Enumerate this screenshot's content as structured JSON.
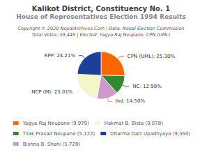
{
  "chart_data": {
    "type": "pie",
    "title": "Kalikot District, Constituency No. 1",
    "subtitle": "House of Representatives Election 1994 Results",
    "annotations": [
      "Copyright © 2020 NepalArchives.Com | Data: Nepal Election Commission",
      "Total Votes: 39,449 | Elected: Yagya Raj Neupane, CPN (UML)"
    ],
    "categories": [
      "CPN (UML)",
      "NC",
      "Ind",
      "NCP (M)",
      "RPP"
    ],
    "values": [
      25.3,
      12.98,
      14.5,
      23.01,
      24.21
    ],
    "value_labels": [
      "CPN (UML): 25.30%",
      "NC: 12.98%",
      "Ind: 14.50%",
      "NCP (M): 23.01%",
      "RPP: 24.21%"
    ],
    "colors": [
      "#FF6600",
      "#2E8B2E",
      "#CC99CC",
      "#F5F5C8",
      "#1C3F99"
    ],
    "data_labels": true,
    "legend": "bottom",
    "legend_entries": [
      {
        "category": "CPN (UML)",
        "label": "Yagya Raj Neupane (9,979)"
      },
      {
        "category": "NCP (M)",
        "label": "Hakmat B. Bista (9,078)"
      },
      {
        "category": "NC",
        "label": "Tilak Prasad Neupane (5,122)"
      },
      {
        "category": "RPP",
        "label": "Dharma Datt Upadhyaya (9,550)"
      },
      {
        "category": "Ind",
        "label": "Bishna B. Shahi (5,720)"
      }
    ]
  }
}
